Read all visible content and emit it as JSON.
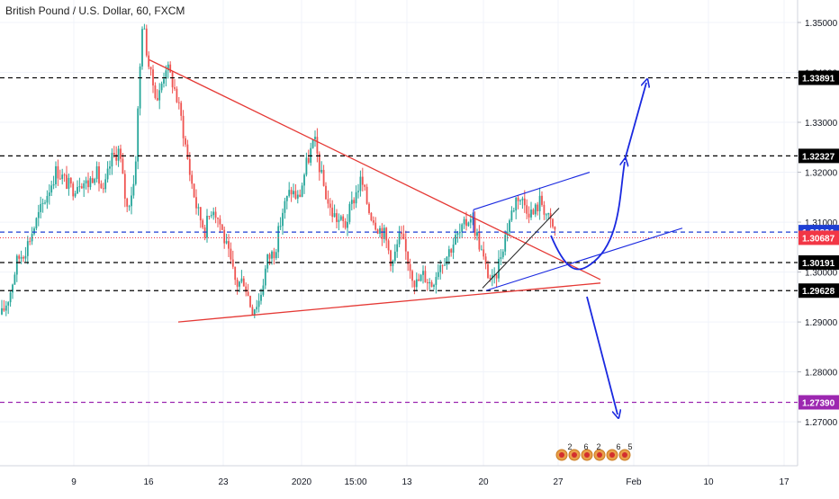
{
  "title": "British Pound / U.S. Dollar, 60, FXCM",
  "chart_data": {
    "type": "line",
    "title": "British Pound / U.S. Dollar, 60, FXCM",
    "xlabel": "",
    "ylabel": "",
    "ylim": [
      1.2612,
      1.3545
    ],
    "x_ticks": [
      "9",
      "16",
      "23",
      "2020",
      "15:00",
      "13",
      "20",
      "27",
      "Feb",
      "10",
      "17"
    ],
    "y_ticks": [
      "1.35000",
      "1.34000",
      "1.33000",
      "1.32000",
      "1.31000",
      "1.30000",
      "1.29000",
      "1.28000",
      "1.27000"
    ],
    "grid": true,
    "price_path": [
      1.2915,
      1.2955,
      1.3025,
      1.3045,
      1.3085,
      1.3125,
      1.3165,
      1.3205,
      1.3185,
      1.3165,
      1.3185,
      1.3175,
      1.3205,
      1.3155,
      1.3225,
      1.3245,
      1.3125,
      1.3185,
      1.3505,
      1.3395,
      1.3345,
      1.3415,
      1.3375,
      1.3305,
      1.3205,
      1.3125,
      1.3085,
      1.3135,
      1.3095,
      1.3035,
      1.2975,
      1.2985,
      1.2925,
      1.2945,
      1.3025,
      1.3045,
      1.3125,
      1.3165,
      1.3145,
      1.3215,
      1.3265,
      1.3185,
      1.3125,
      1.3105,
      1.3095,
      1.3145,
      1.3185,
      1.3125,
      1.3095,
      1.3075,
      1.3015,
      1.3075,
      1.3025,
      1.2975,
      1.2995,
      1.2975,
      1.3015,
      1.3035,
      1.3065,
      1.3085,
      1.3115,
      1.3065,
      1.3005,
      1.2975,
      1.3045,
      1.3105,
      1.3155,
      1.3135,
      1.3115,
      1.3145,
      1.3105,
      1.3075
    ],
    "price_line": {
      "value": 1.30687,
      "label": "1.30687",
      "color": "#f23645"
    },
    "levels": [
      {
        "value": 1.33891,
        "label": "1.33891",
        "color": "#000000",
        "style": "dashed"
      },
      {
        "value": 1.32327,
        "label": "1.32327",
        "color": "#000000",
        "style": "dashed"
      },
      {
        "value": 1.30801,
        "label": "1.30801",
        "color": "#1e3fd4",
        "style": "dashed"
      },
      {
        "value": 1.30191,
        "label": "1.30191",
        "color": "#000000",
        "style": "dashed"
      },
      {
        "value": 1.29628,
        "label": "1.29628",
        "color": "#000000",
        "style": "dashed"
      },
      {
        "value": 1.2739,
        "label": "1.27390",
        "color": "#9c27b0",
        "style": "dashed"
      }
    ],
    "up_color": "#26a69a",
    "down_color": "#ef5350",
    "trendline_red": "#e53935",
    "trendline_blue": "#1a29e0",
    "event_labels": [
      "2",
      "6",
      "2",
      "6",
      "5"
    ]
  }
}
